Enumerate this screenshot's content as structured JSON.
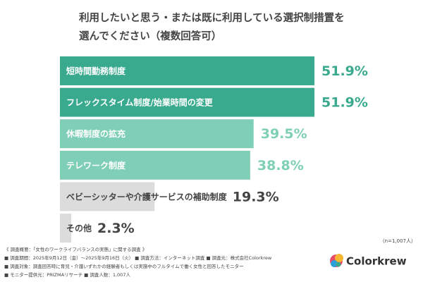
{
  "chart_data": {
    "type": "bar",
    "orientation": "horizontal",
    "title_lines": [
      "利用したいと思う・または既に利用している選択制措置を",
      "選んでください（複数回答可）"
    ],
    "categories": [
      "短時間勤務制度",
      "フレックスタイム制度/始業時間の変更",
      "休暇制度の拡充",
      "テレワーク制度",
      "ベビーシッターや介護サービスの補助制度",
      "その他"
    ],
    "values": [
      51.9,
      51.9,
      39.5,
      38.8,
      19.3,
      2.3
    ],
    "value_labels": [
      "51.9%",
      "51.9%",
      "39.5%",
      "38.8%",
      "19.3%",
      "2.3%"
    ],
    "colors": [
      "#3aaa8e",
      "#3aaa8e",
      "#7fcfb6",
      "#7fcfb6",
      "#dcdcdc",
      "#dcdcdc"
    ],
    "label_colors": [
      "#ffffff",
      "#ffffff",
      "#ffffff",
      "#ffffff",
      "#444444",
      "#444444"
    ],
    "value_label_colors": [
      "#3aaa8e",
      "#3aaa8e",
      "#7fcfb6",
      "#7fcfb6",
      "#444444",
      "#444444"
    ],
    "sample_note": "（n=1,007人）",
    "footnotes": [
      "《 調査概要：「女性のワークライフバランスの実態」に関する調査 》",
      "■ 調査期間：2025年9月12日（金）～2025年9月16日（火） ■ 調査方法：インターネット調査 ■ 調査元：株式会社Colorkrew",
      "■ 調査対象：調査回答時に育児・介護いずれかの経験者もしくは実施中のフルタイムで働く女性と回答したモニター",
      "■ モニター提供元：PRIZMAリサーチ ■ 調査人数：1,007人"
    ],
    "brand": "Colorkrew"
  }
}
